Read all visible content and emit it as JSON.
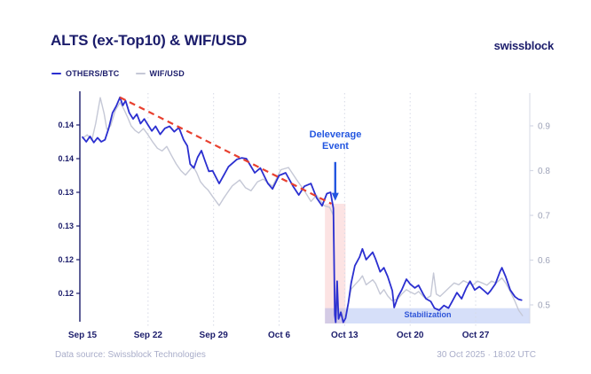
{
  "header": {
    "title": "ALTS (ex-Top10) & WIF/USD",
    "logo": "swissblock"
  },
  "legend": [
    {
      "label": "OTHERS/BTC",
      "color": "#2b2fd0"
    },
    {
      "label": "WIF/USD",
      "color": "#c5c8d6"
    }
  ],
  "annotations": {
    "deleverage": {
      "line1": "Deleverage",
      "line2": "Event"
    },
    "stabilization": {
      "label": "Stabilization"
    }
  },
  "footer": {
    "source": "Data source: Swissblock Technologies",
    "timestamp": "30 Oct 2025 · 18:02 UTC"
  },
  "chart_data": {
    "type": "line",
    "title": "ALTS (ex-Top10) & WIF/USD",
    "grid": "vertical-dotted-weekly",
    "legend_position": "top-left",
    "x_axis": {
      "unit": "date (day offset from Sep 15)",
      "ticks": [
        {
          "day": 0,
          "label": "Sep 15"
        },
        {
          "day": 7,
          "label": "Sep 22"
        },
        {
          "day": 14,
          "label": "Sep 29"
        },
        {
          "day": 21,
          "label": "Oct 6"
        },
        {
          "day": 28,
          "label": "Oct 13"
        },
        {
          "day": 35,
          "label": "Oct 20"
        },
        {
          "day": 42,
          "label": "Oct 27"
        }
      ],
      "range_days": [
        0,
        47.8
      ]
    },
    "y_axis_left": {
      "series": "OTHERS/BTC",
      "range": [
        0.1155,
        0.1497
      ],
      "ticks": [
        {
          "value": 0.145,
          "label": "0.14"
        },
        {
          "value": 0.14,
          "label": "0.14"
        },
        {
          "value": 0.135,
          "label": "0.13"
        },
        {
          "value": 0.13,
          "label": "0.13"
        },
        {
          "value": 0.125,
          "label": "0.12"
        },
        {
          "value": 0.12,
          "label": "0.12"
        }
      ]
    },
    "y_axis_right": {
      "series": "WIF/USD",
      "range": [
        0.458,
        0.973
      ],
      "ticks": [
        {
          "value": 0.9,
          "label": "0.9"
        },
        {
          "value": 0.8,
          "label": "0.8"
        },
        {
          "value": 0.7,
          "label": "0.7"
        },
        {
          "value": 0.6,
          "label": "0.6"
        },
        {
          "value": 0.5,
          "label": "0.5"
        }
      ]
    },
    "series": [
      {
        "name": "WIF/USD",
        "axis": "right",
        "color": "#c5c8d6",
        "width": 1.4,
        "points": [
          [
            0,
            0.872
          ],
          [
            0.5,
            0.88
          ],
          [
            1.0,
            0.868
          ],
          [
            1.4,
            0.905
          ],
          [
            1.9,
            0.963
          ],
          [
            2.3,
            0.928
          ],
          [
            2.6,
            0.892
          ],
          [
            3.0,
            0.9
          ],
          [
            3.5,
            0.934
          ],
          [
            4.0,
            0.952
          ],
          [
            4.4,
            0.938
          ],
          [
            4.8,
            0.92
          ],
          [
            5.2,
            0.9
          ],
          [
            5.6,
            0.89
          ],
          [
            6.0,
            0.884
          ],
          [
            6.5,
            0.894
          ],
          [
            7.0,
            0.88
          ],
          [
            7.5,
            0.864
          ],
          [
            8.0,
            0.85
          ],
          [
            8.5,
            0.844
          ],
          [
            9.0,
            0.854
          ],
          [
            9.5,
            0.834
          ],
          [
            10.0,
            0.815
          ],
          [
            10.5,
            0.8
          ],
          [
            11.0,
            0.79
          ],
          [
            11.4,
            0.8
          ],
          [
            11.8,
            0.81
          ],
          [
            12.2,
            0.795
          ],
          [
            12.6,
            0.775
          ],
          [
            13.0,
            0.765
          ],
          [
            13.4,
            0.757
          ],
          [
            13.9,
            0.742
          ],
          [
            14.6,
            0.722
          ],
          [
            15.1,
            0.739
          ],
          [
            15.6,
            0.754
          ],
          [
            16.0,
            0.766
          ],
          [
            16.8,
            0.779
          ],
          [
            17.4,
            0.762
          ],
          [
            18.0,
            0.755
          ],
          [
            18.7,
            0.775
          ],
          [
            19.3,
            0.781
          ],
          [
            20.3,
            0.765
          ],
          [
            21.2,
            0.802
          ],
          [
            22.0,
            0.807
          ],
          [
            22.9,
            0.779
          ],
          [
            23.7,
            0.755
          ],
          [
            24.4,
            0.731
          ],
          [
            25.0,
            0.745
          ],
          [
            25.8,
            0.722
          ],
          [
            26.4,
            0.718
          ],
          [
            26.8,
            0.7
          ],
          [
            26.95,
            0.492
          ],
          [
            27.05,
            0.474
          ],
          [
            27.2,
            0.502
          ],
          [
            27.35,
            0.479
          ],
          [
            27.6,
            0.486
          ],
          [
            27.85,
            0.472
          ],
          [
            28.1,
            0.478
          ],
          [
            28.4,
            0.505
          ],
          [
            28.7,
            0.535
          ],
          [
            29.1,
            0.545
          ],
          [
            29.6,
            0.556
          ],
          [
            29.9,
            0.565
          ],
          [
            30.3,
            0.545
          ],
          [
            31.0,
            0.556
          ],
          [
            31.3,
            0.548
          ],
          [
            31.8,
            0.524
          ],
          [
            32.2,
            0.534
          ],
          [
            32.6,
            0.52
          ],
          [
            33.1,
            0.509
          ],
          [
            33.7,
            0.514
          ],
          [
            34.1,
            0.524
          ],
          [
            34.6,
            0.534
          ],
          [
            35.0,
            0.529
          ],
          [
            35.5,
            0.524
          ],
          [
            35.9,
            0.53
          ],
          [
            36.4,
            0.519
          ],
          [
            36.7,
            0.514
          ],
          [
            37.2,
            0.52
          ],
          [
            37.5,
            0.571
          ],
          [
            37.8,
            0.524
          ],
          [
            38.2,
            0.519
          ],
          [
            38.7,
            0.529
          ],
          [
            39.2,
            0.539
          ],
          [
            39.7,
            0.549
          ],
          [
            40.2,
            0.545
          ],
          [
            40.7,
            0.554
          ],
          [
            41.2,
            0.549
          ],
          [
            41.7,
            0.544
          ],
          [
            42.2,
            0.553
          ],
          [
            42.7,
            0.549
          ],
          [
            43.2,
            0.544
          ],
          [
            43.7,
            0.553
          ],
          [
            44.2,
            0.549
          ],
          [
            44.8,
            0.56
          ],
          [
            45.2,
            0.549
          ],
          [
            45.7,
            0.53
          ],
          [
            46.2,
            0.508
          ],
          [
            46.6,
            0.488
          ],
          [
            47.0,
            0.476
          ]
        ]
      },
      {
        "name": "OTHERS/BTC",
        "axis": "left",
        "color": "#2b2fd0",
        "width": 1.8,
        "points": [
          [
            0,
            0.1432
          ],
          [
            0.4,
            0.1425
          ],
          [
            0.8,
            0.1433
          ],
          [
            1.2,
            0.1424
          ],
          [
            1.6,
            0.1431
          ],
          [
            2.0,
            0.1425
          ],
          [
            2.4,
            0.1428
          ],
          [
            2.8,
            0.1445
          ],
          [
            3.2,
            0.1468
          ],
          [
            3.6,
            0.1478
          ],
          [
            4.0,
            0.1491
          ],
          [
            4.3,
            0.1479
          ],
          [
            4.6,
            0.1486
          ],
          [
            5.0,
            0.1468
          ],
          [
            5.4,
            0.1459
          ],
          [
            5.8,
            0.1466
          ],
          [
            6.2,
            0.1452
          ],
          [
            6.6,
            0.1459
          ],
          [
            7.0,
            0.145
          ],
          [
            7.4,
            0.1441
          ],
          [
            7.8,
            0.1448
          ],
          [
            8.3,
            0.1436
          ],
          [
            8.8,
            0.1445
          ],
          [
            9.3,
            0.1448
          ],
          [
            9.8,
            0.144
          ],
          [
            10.3,
            0.1446
          ],
          [
            10.8,
            0.1428
          ],
          [
            11.2,
            0.1419
          ],
          [
            11.5,
            0.1392
          ],
          [
            11.9,
            0.1386
          ],
          [
            12.3,
            0.1402
          ],
          [
            12.7,
            0.1412
          ],
          [
            13.1,
            0.1396
          ],
          [
            13.5,
            0.1381
          ],
          [
            13.9,
            0.1382
          ],
          [
            14.6,
            0.1363
          ],
          [
            15.6,
            0.1388
          ],
          [
            16.5,
            0.1399
          ],
          [
            17.0,
            0.1401
          ],
          [
            17.5,
            0.14
          ],
          [
            18.4,
            0.1379
          ],
          [
            19.0,
            0.1386
          ],
          [
            19.8,
            0.1363
          ],
          [
            20.3,
            0.1355
          ],
          [
            21.0,
            0.1375
          ],
          [
            21.7,
            0.1379
          ],
          [
            22.5,
            0.1359
          ],
          [
            23.1,
            0.1346
          ],
          [
            23.7,
            0.1359
          ],
          [
            24.4,
            0.1363
          ],
          [
            25.0,
            0.1342
          ],
          [
            25.6,
            0.133
          ],
          [
            26.1,
            0.1348
          ],
          [
            26.5,
            0.135
          ],
          [
            26.8,
            0.1326
          ],
          [
            26.95,
            0.1168
          ],
          [
            27.05,
            0.1157
          ],
          [
            27.2,
            0.1218
          ],
          [
            27.35,
            0.1162
          ],
          [
            27.6,
            0.1172
          ],
          [
            27.85,
            0.1157
          ],
          [
            28.1,
            0.1163
          ],
          [
            28.4,
            0.1186
          ],
          [
            28.7,
            0.1215
          ],
          [
            29.1,
            0.1241
          ],
          [
            29.6,
            0.1254
          ],
          [
            29.9,
            0.1266
          ],
          [
            30.3,
            0.125
          ],
          [
            31.0,
            0.1261
          ],
          [
            31.3,
            0.1251
          ],
          [
            31.8,
            0.1232
          ],
          [
            32.2,
            0.1238
          ],
          [
            32.6,
            0.1225
          ],
          [
            33.1,
            0.1204
          ],
          [
            33.3,
            0.1179
          ],
          [
            33.7,
            0.1195
          ],
          [
            34.1,
            0.1205
          ],
          [
            34.6,
            0.1221
          ],
          [
            35.0,
            0.1214
          ],
          [
            35.5,
            0.1208
          ],
          [
            35.9,
            0.1212
          ],
          [
            36.4,
            0.1199
          ],
          [
            36.7,
            0.1192
          ],
          [
            37.2,
            0.1188
          ],
          [
            37.6,
            0.1178
          ],
          [
            38.1,
            0.1175
          ],
          [
            38.6,
            0.1182
          ],
          [
            39.1,
            0.1178
          ],
          [
            39.5,
            0.1188
          ],
          [
            40.0,
            0.1201
          ],
          [
            40.5,
            0.1192
          ],
          [
            41.0,
            0.1208
          ],
          [
            41.4,
            0.1218
          ],
          [
            41.9,
            0.1205
          ],
          [
            42.4,
            0.121
          ],
          [
            42.9,
            0.1204
          ],
          [
            43.3,
            0.1199
          ],
          [
            43.6,
            0.1204
          ],
          [
            44.1,
            0.1214
          ],
          [
            44.6,
            0.1232
          ],
          [
            44.8,
            0.1238
          ],
          [
            45.2,
            0.1225
          ],
          [
            45.7,
            0.1205
          ],
          [
            46.2,
            0.1195
          ],
          [
            46.6,
            0.1191
          ],
          [
            46.9,
            0.119
          ]
        ]
      }
    ],
    "trendline": {
      "name": "descending-resistance",
      "axis": "left",
      "color": "#e8402f",
      "dash": [
        7,
        5
      ],
      "width": 2.2,
      "from": [
        4.0,
        0.1491
      ],
      "to": [
        26.6,
        0.1333
      ]
    },
    "bands": [
      {
        "name": "deleverage-event-band",
        "type": "vertical",
        "axis": "left",
        "day_start": 25.9,
        "day_end": 28.1,
        "value_top": 0.1333,
        "color": "rgba(238,90,90,0.17)"
      },
      {
        "name": "stabilization-band",
        "type": "horizontal",
        "axis": "left",
        "day_start": 25.9,
        "to_right_edge": true,
        "value_top": 0.1178,
        "color": "rgba(118,150,235,0.30)"
      }
    ],
    "arrow": {
      "name": "deleverage-arrow",
      "color": "#2356e0",
      "day": 27.0,
      "value_from": 0.1395,
      "value_to": 0.134
    },
    "axis_colors": {
      "left": "#1b1c6b",
      "right": "#9ea3b8",
      "grid": "#d6d9e6"
    }
  }
}
